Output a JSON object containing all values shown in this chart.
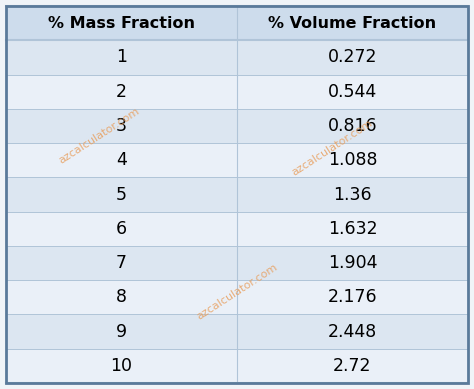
{
  "col1_header": "% Mass Fraction",
  "col2_header": "% Volume Fraction",
  "mass_fractions": [
    "1",
    "2",
    "3",
    "4",
    "5",
    "6",
    "7",
    "8",
    "9",
    "10"
  ],
  "volume_fractions": [
    "0.272",
    "0.544",
    "0.816",
    "1.088",
    "1.36",
    "1.632",
    "1.904",
    "2.176",
    "2.448",
    "2.72"
  ],
  "header_bg": "#cddcec",
  "row_bg_odd": "#dce6f1",
  "row_bg_even": "#eaf0f8",
  "border_color": "#5a7a9a",
  "divider_color": "#b0c4d8",
  "text_color": "#000000",
  "header_font_size": 11.5,
  "cell_font_size": 12.5,
  "watermark_color": "#e8a060",
  "watermark_text": "azcalculator.com",
  "fig_width": 4.74,
  "fig_height": 3.89,
  "dpi": 100
}
